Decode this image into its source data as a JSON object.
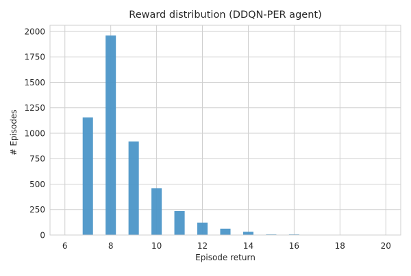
{
  "chart_data": {
    "type": "bar",
    "title": "Reward distribution (DDQN-PER agent)",
    "xlabel": "Episode return",
    "ylabel": "# Episodes",
    "xlim": [
      5.35,
      20.65
    ],
    "ylim": [
      0,
      2060
    ],
    "xticks": [
      6,
      8,
      10,
      12,
      14,
      16,
      18,
      20
    ],
    "yticks": [
      0,
      250,
      500,
      750,
      1000,
      1250,
      1500,
      1750,
      2000
    ],
    "bin_width": 0.45,
    "grid": true,
    "colors": {
      "bar": "#4c96c8",
      "grid": "#cfcfcf"
    },
    "bins": [
      {
        "x": 7.0,
        "value": 1155
      },
      {
        "x": 8.0,
        "value": 1960
      },
      {
        "x": 9.0,
        "value": 918
      },
      {
        "x": 10.0,
        "value": 460
      },
      {
        "x": 11.0,
        "value": 235
      },
      {
        "x": 12.0,
        "value": 122
      },
      {
        "x": 13.0,
        "value": 62
      },
      {
        "x": 14.0,
        "value": 32
      },
      {
        "x": 15.0,
        "value": 6
      },
      {
        "x": 16.0,
        "value": 6
      }
    ]
  }
}
